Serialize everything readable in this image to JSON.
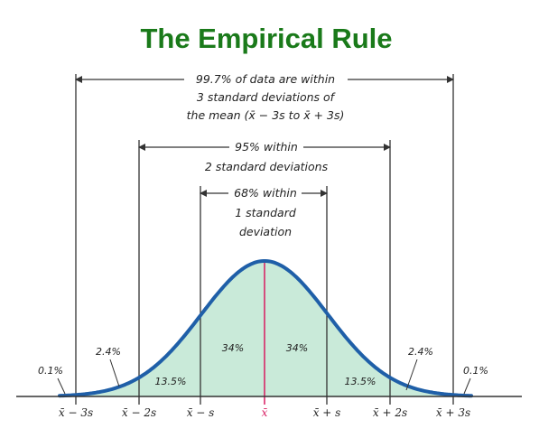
{
  "title": "The Empirical Rule",
  "colors": {
    "title": "#1a7a1a",
    "curve": "#1f5fa8",
    "fill": "#c9ead9",
    "mean_line": "#d81b60",
    "lines": "#333333"
  },
  "bracket_3sd": {
    "lines": [
      "99.7% of data are within",
      "3 standard deviations of",
      "the mean (x̄ − 3s to x̄ + 3s)"
    ]
  },
  "bracket_2sd": {
    "lines": [
      "95% within",
      "2 standard deviations"
    ]
  },
  "bracket_1sd": {
    "lines": [
      "68% within",
      "1 standard",
      "deviation"
    ]
  },
  "regions": {
    "tail_left": "0.1%",
    "band_left_outer": "2.4%",
    "band_left_middle": "13.5%",
    "band_left_inner": "34%",
    "band_right_inner": "34%",
    "band_right_middle": "13.5%",
    "band_right_outer": "2.4%",
    "tail_right": "0.1%"
  },
  "axis_ticks": [
    "x̄ − 3s",
    "x̄ − 2s",
    "x̄ − s",
    "x̄",
    "x̄ + s",
    "x̄ + 2s",
    "x̄ + 3s"
  ]
}
